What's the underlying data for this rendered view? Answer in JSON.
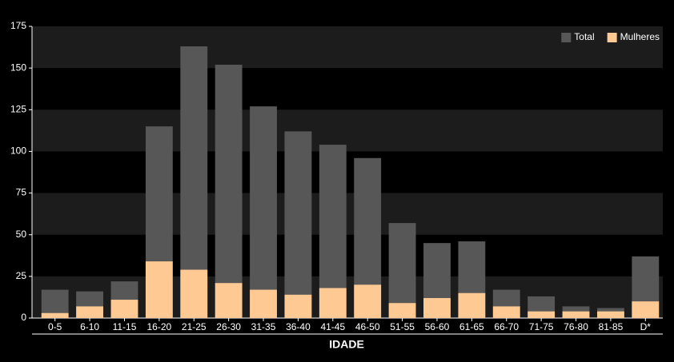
{
  "chart_data": {
    "type": "bar",
    "x_label": "IDADE",
    "categories": [
      "0-5",
      "6-10",
      "11-15",
      "16-20",
      "21-25",
      "26-30",
      "31-35",
      "36-40",
      "41-45",
      "46-50",
      "51-55",
      "56-60",
      "61-65",
      "66-70",
      "71-75",
      "76-80",
      "81-85",
      "D*"
    ],
    "series": [
      {
        "name": "Total",
        "color": "#575757",
        "values": [
          17,
          16,
          22,
          115,
          163,
          152,
          127,
          112,
          104,
          96,
          57,
          45,
          46,
          17,
          13,
          7,
          6,
          37
        ]
      },
      {
        "name": "Mulheres",
        "color": "#fec992",
        "values": [
          3,
          7,
          11,
          34,
          29,
          21,
          17,
          14,
          18,
          20,
          9,
          12,
          15,
          7,
          4,
          4,
          4,
          10
        ]
      }
    ],
    "ylim": [
      0,
      175
    ],
    "yticks": [
      0,
      25,
      50,
      75,
      100,
      125,
      150,
      175
    ],
    "grid": true,
    "legend": "top-right"
  }
}
